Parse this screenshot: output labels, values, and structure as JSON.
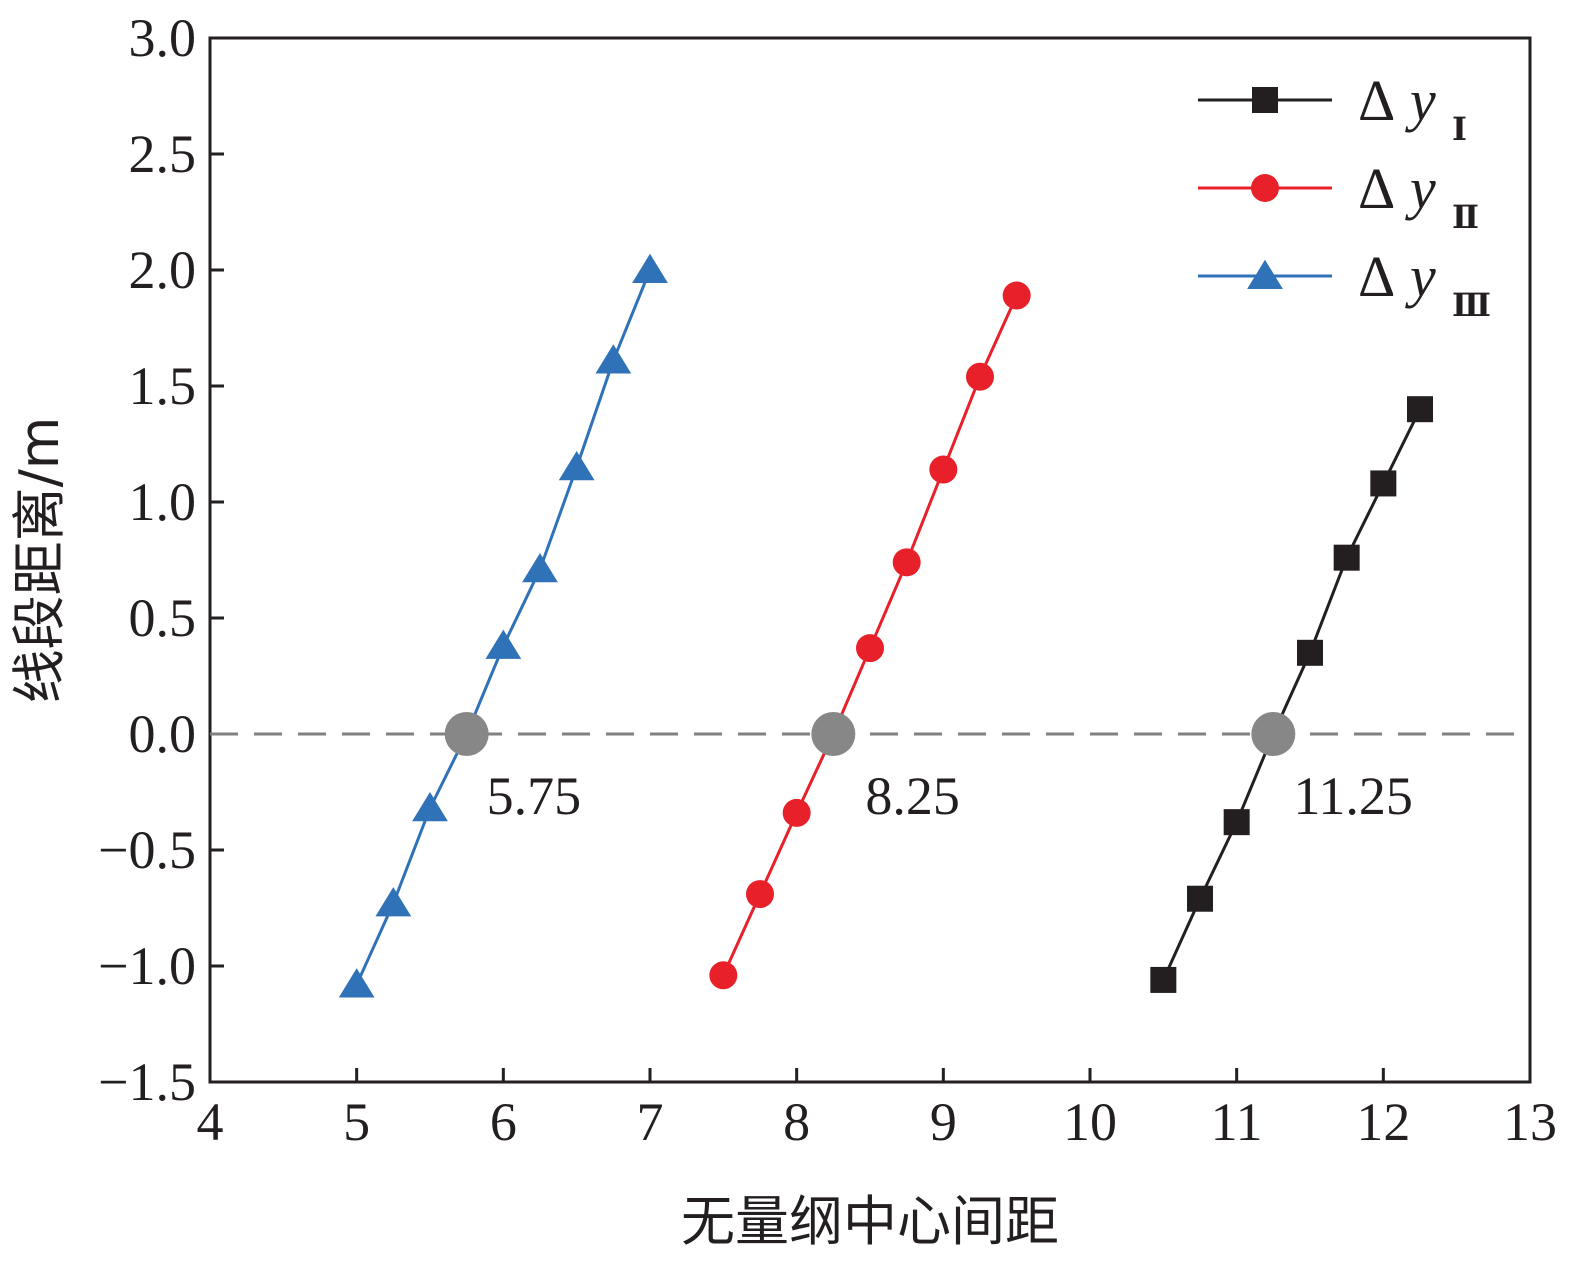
{
  "chart_data": {
    "type": "line",
    "title": "",
    "xlabel": "无量纲中心间距",
    "ylabel": "线段距离/m",
    "xlim": [
      4,
      13
    ],
    "ylim": [
      -1.5,
      3.0
    ],
    "xticks": [
      4,
      5,
      6,
      7,
      8,
      9,
      10,
      11,
      12,
      13
    ],
    "xtick_labels": [
      "4",
      "5",
      "6",
      "7",
      "8",
      "9",
      "10",
      "11",
      "12",
      "13"
    ],
    "yticks": [
      -1.5,
      -1.0,
      -0.5,
      0.0,
      0.5,
      1.0,
      1.5,
      2.0,
      2.5,
      3.0
    ],
    "ytick_labels": [
      "−1.5",
      "−1.0",
      "−0.5",
      "0.0",
      "0.5",
      "1.0",
      "1.5",
      "2.0",
      "2.5",
      "3.0"
    ],
    "grid": false,
    "legend_position": "top-right",
    "reference_line": {
      "y": 0.0,
      "style": "dashed",
      "color": "#808080"
    },
    "series": [
      {
        "name": "ΔyⅠ",
        "legend_delta": "Δ",
        "legend_var": "y",
        "legend_sub": "Ⅰ",
        "color": "#231f20",
        "marker": "square",
        "x": [
          10.5,
          10.75,
          11.0,
          11.25,
          11.5,
          11.75,
          12.0,
          12.25
        ],
        "y": [
          -1.06,
          -0.71,
          -0.38,
          0.0,
          0.35,
          0.76,
          1.08,
          1.4
        ]
      },
      {
        "name": "ΔyⅡ",
        "legend_delta": "Δ",
        "legend_var": "y",
        "legend_sub": "Ⅱ",
        "color": "#e8202a",
        "marker": "circle",
        "x": [
          7.5,
          7.75,
          8.0,
          8.25,
          8.5,
          8.75,
          9.0,
          9.25,
          9.5
        ],
        "y": [
          -1.04,
          -0.69,
          -0.34,
          0.0,
          0.37,
          0.74,
          1.14,
          1.54,
          1.89
        ]
      },
      {
        "name": "ΔyⅢ",
        "legend_delta": "Δ",
        "legend_var": "y",
        "legend_sub": "Ⅲ",
        "color": "#2f72b8",
        "marker": "triangle",
        "x": [
          5.0,
          5.25,
          5.5,
          5.75,
          6.0,
          6.25,
          6.5,
          6.75,
          7.0
        ],
        "y": [
          -1.08,
          -0.73,
          -0.32,
          0.0,
          0.38,
          0.71,
          1.15,
          1.61,
          2.0
        ]
      }
    ],
    "intersections": [
      {
        "x": 5.75,
        "y": 0.0,
        "label": "5.75"
      },
      {
        "x": 8.25,
        "y": 0.0,
        "label": "8.25"
      },
      {
        "x": 11.25,
        "y": 0.0,
        "label": "11.25"
      }
    ],
    "intersection_color": "#878787"
  }
}
